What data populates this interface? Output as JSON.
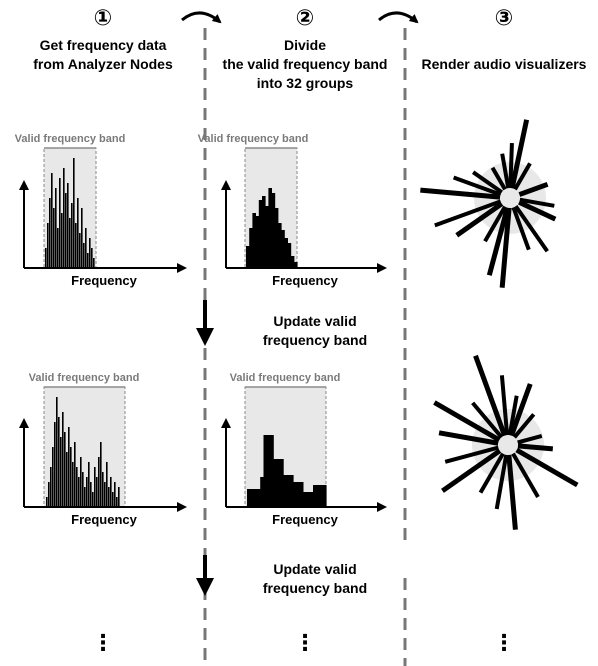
{
  "steps": [
    {
      "number": "①",
      "lines": [
        "Get frequency data",
        "from Analyzer Nodes"
      ]
    },
    {
      "number": "②",
      "lines": [
        "Divide",
        "the valid frequency band",
        "into 32 groups"
      ]
    },
    {
      "number": "③",
      "lines": [
        "Render audio visualizers"
      ]
    }
  ],
  "labels": {
    "valid_band": "Valid frequency band",
    "frequency": "Frequency",
    "update": [
      "Update valid",
      "frequency band"
    ],
    "ellipsis": "⋮"
  },
  "colors": {
    "band_fill": "#e8e8e8",
    "band_border": "#8a8a8a",
    "band_label": "#7a7a7a",
    "divider": "#777777",
    "ink": "#000000"
  }
}
